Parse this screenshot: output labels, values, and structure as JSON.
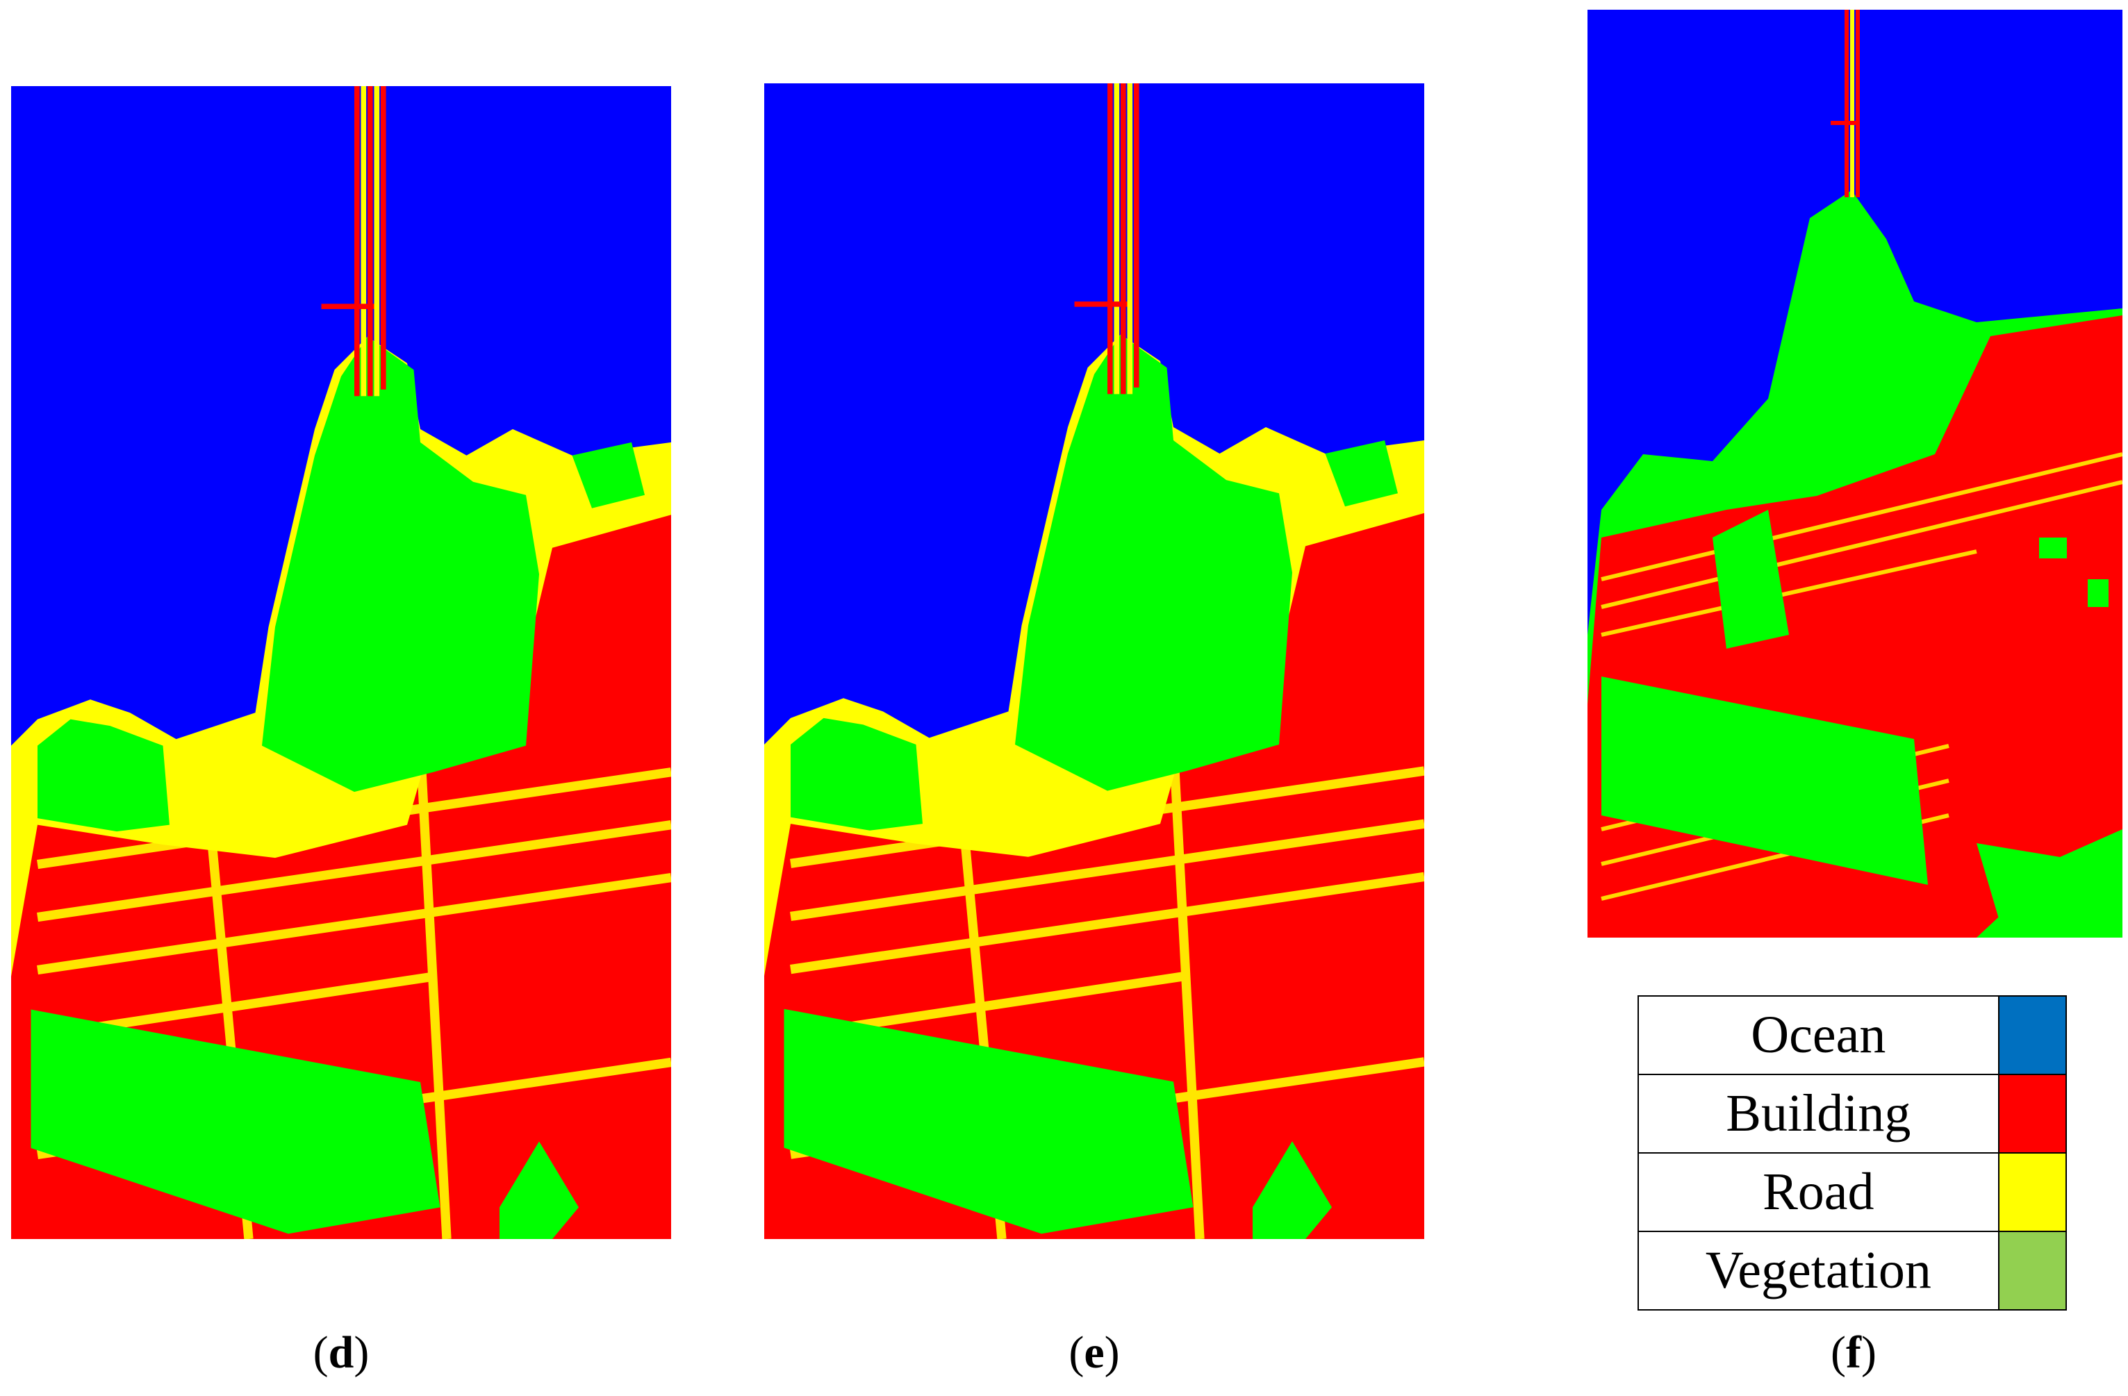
{
  "panels": [
    {
      "id": "d",
      "caption": "d"
    },
    {
      "id": "e",
      "caption": "e"
    },
    {
      "id": "f",
      "caption": "f"
    }
  ],
  "legend": [
    {
      "label": "Ocean",
      "color": "#0070c0"
    },
    {
      "label": "Building",
      "color": "#ff0000"
    },
    {
      "label": "Road",
      "color": "#ffff00"
    },
    {
      "label": "Vegetation",
      "color": "#92d050"
    }
  ],
  "map_colors": {
    "ocean": "#0000ff",
    "building": "#ff0000",
    "road": "#ffff00",
    "vegetation": "#00ff00"
  }
}
